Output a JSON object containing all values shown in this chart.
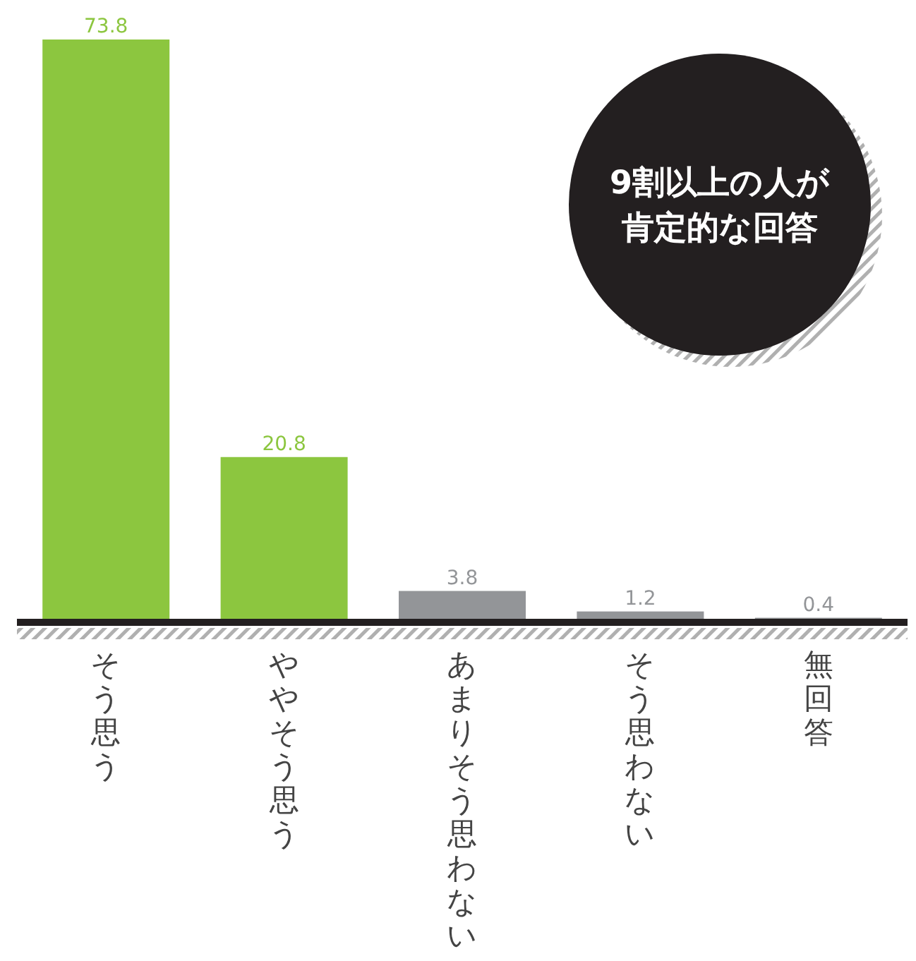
{
  "chart_data": {
    "type": "bar",
    "categories": [
      "そう思う",
      "ややそう思う",
      "あまりそう思わない",
      "そう思わない",
      "無回答"
    ],
    "values": [
      73.8,
      20.8,
      3.8,
      1.2,
      0.4
    ],
    "colors": [
      "#8cc63f",
      "#8cc63f",
      "#939598",
      "#939598",
      "#939598"
    ],
    "data_labels": true,
    "annotations": [
      "9割以上の人が肯定的な回答"
    ]
  }
}
